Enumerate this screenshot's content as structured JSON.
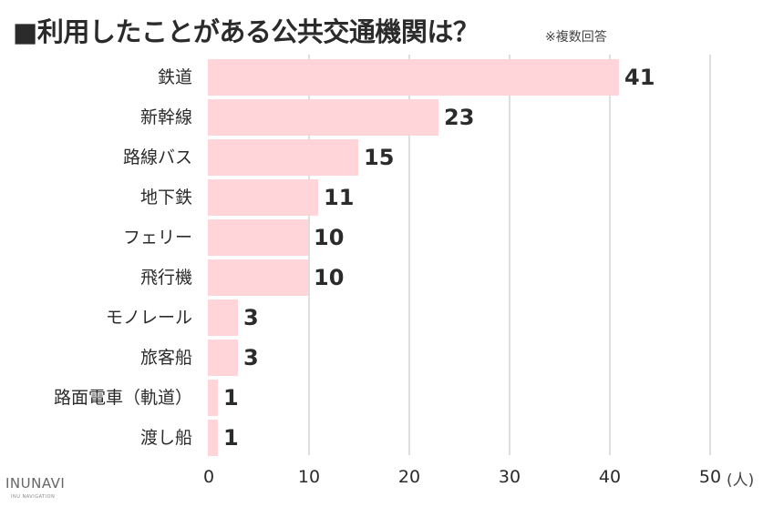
{
  "header": {
    "title": "■利用したことがある公共交通機関は？",
    "note": "※複数回答"
  },
  "logo": {
    "name": "INUNAVI",
    "tagline": "INU NAVIGATION"
  },
  "axis": {
    "ticks": [
      "0",
      "10",
      "20",
      "30",
      "40",
      "50"
    ],
    "unit": "(人)"
  },
  "colors": {
    "bar": "#ffd5da",
    "grid": "#dedede",
    "text": "#2b2b2b"
  },
  "chart_data": {
    "type": "bar",
    "orientation": "horizontal",
    "title": "■利用したことがある公共交通機関は？",
    "subtitle": "※複数回答",
    "categories": [
      "鉄道",
      "新幹線",
      "路線バス",
      "地下鉄",
      "フェリー",
      "飛行機",
      "モノレール",
      "旅客船",
      "路面電車（軌道）",
      "渡し船"
    ],
    "values": [
      41,
      23,
      15,
      11,
      10,
      10,
      3,
      3,
      1,
      1
    ],
    "xlabel": "(人)",
    "ylabel": "",
    "xlim": [
      0,
      50
    ],
    "xticks": [
      0,
      10,
      20,
      30,
      40,
      50
    ],
    "grid": true,
    "data_labels": true,
    "legend": null
  }
}
